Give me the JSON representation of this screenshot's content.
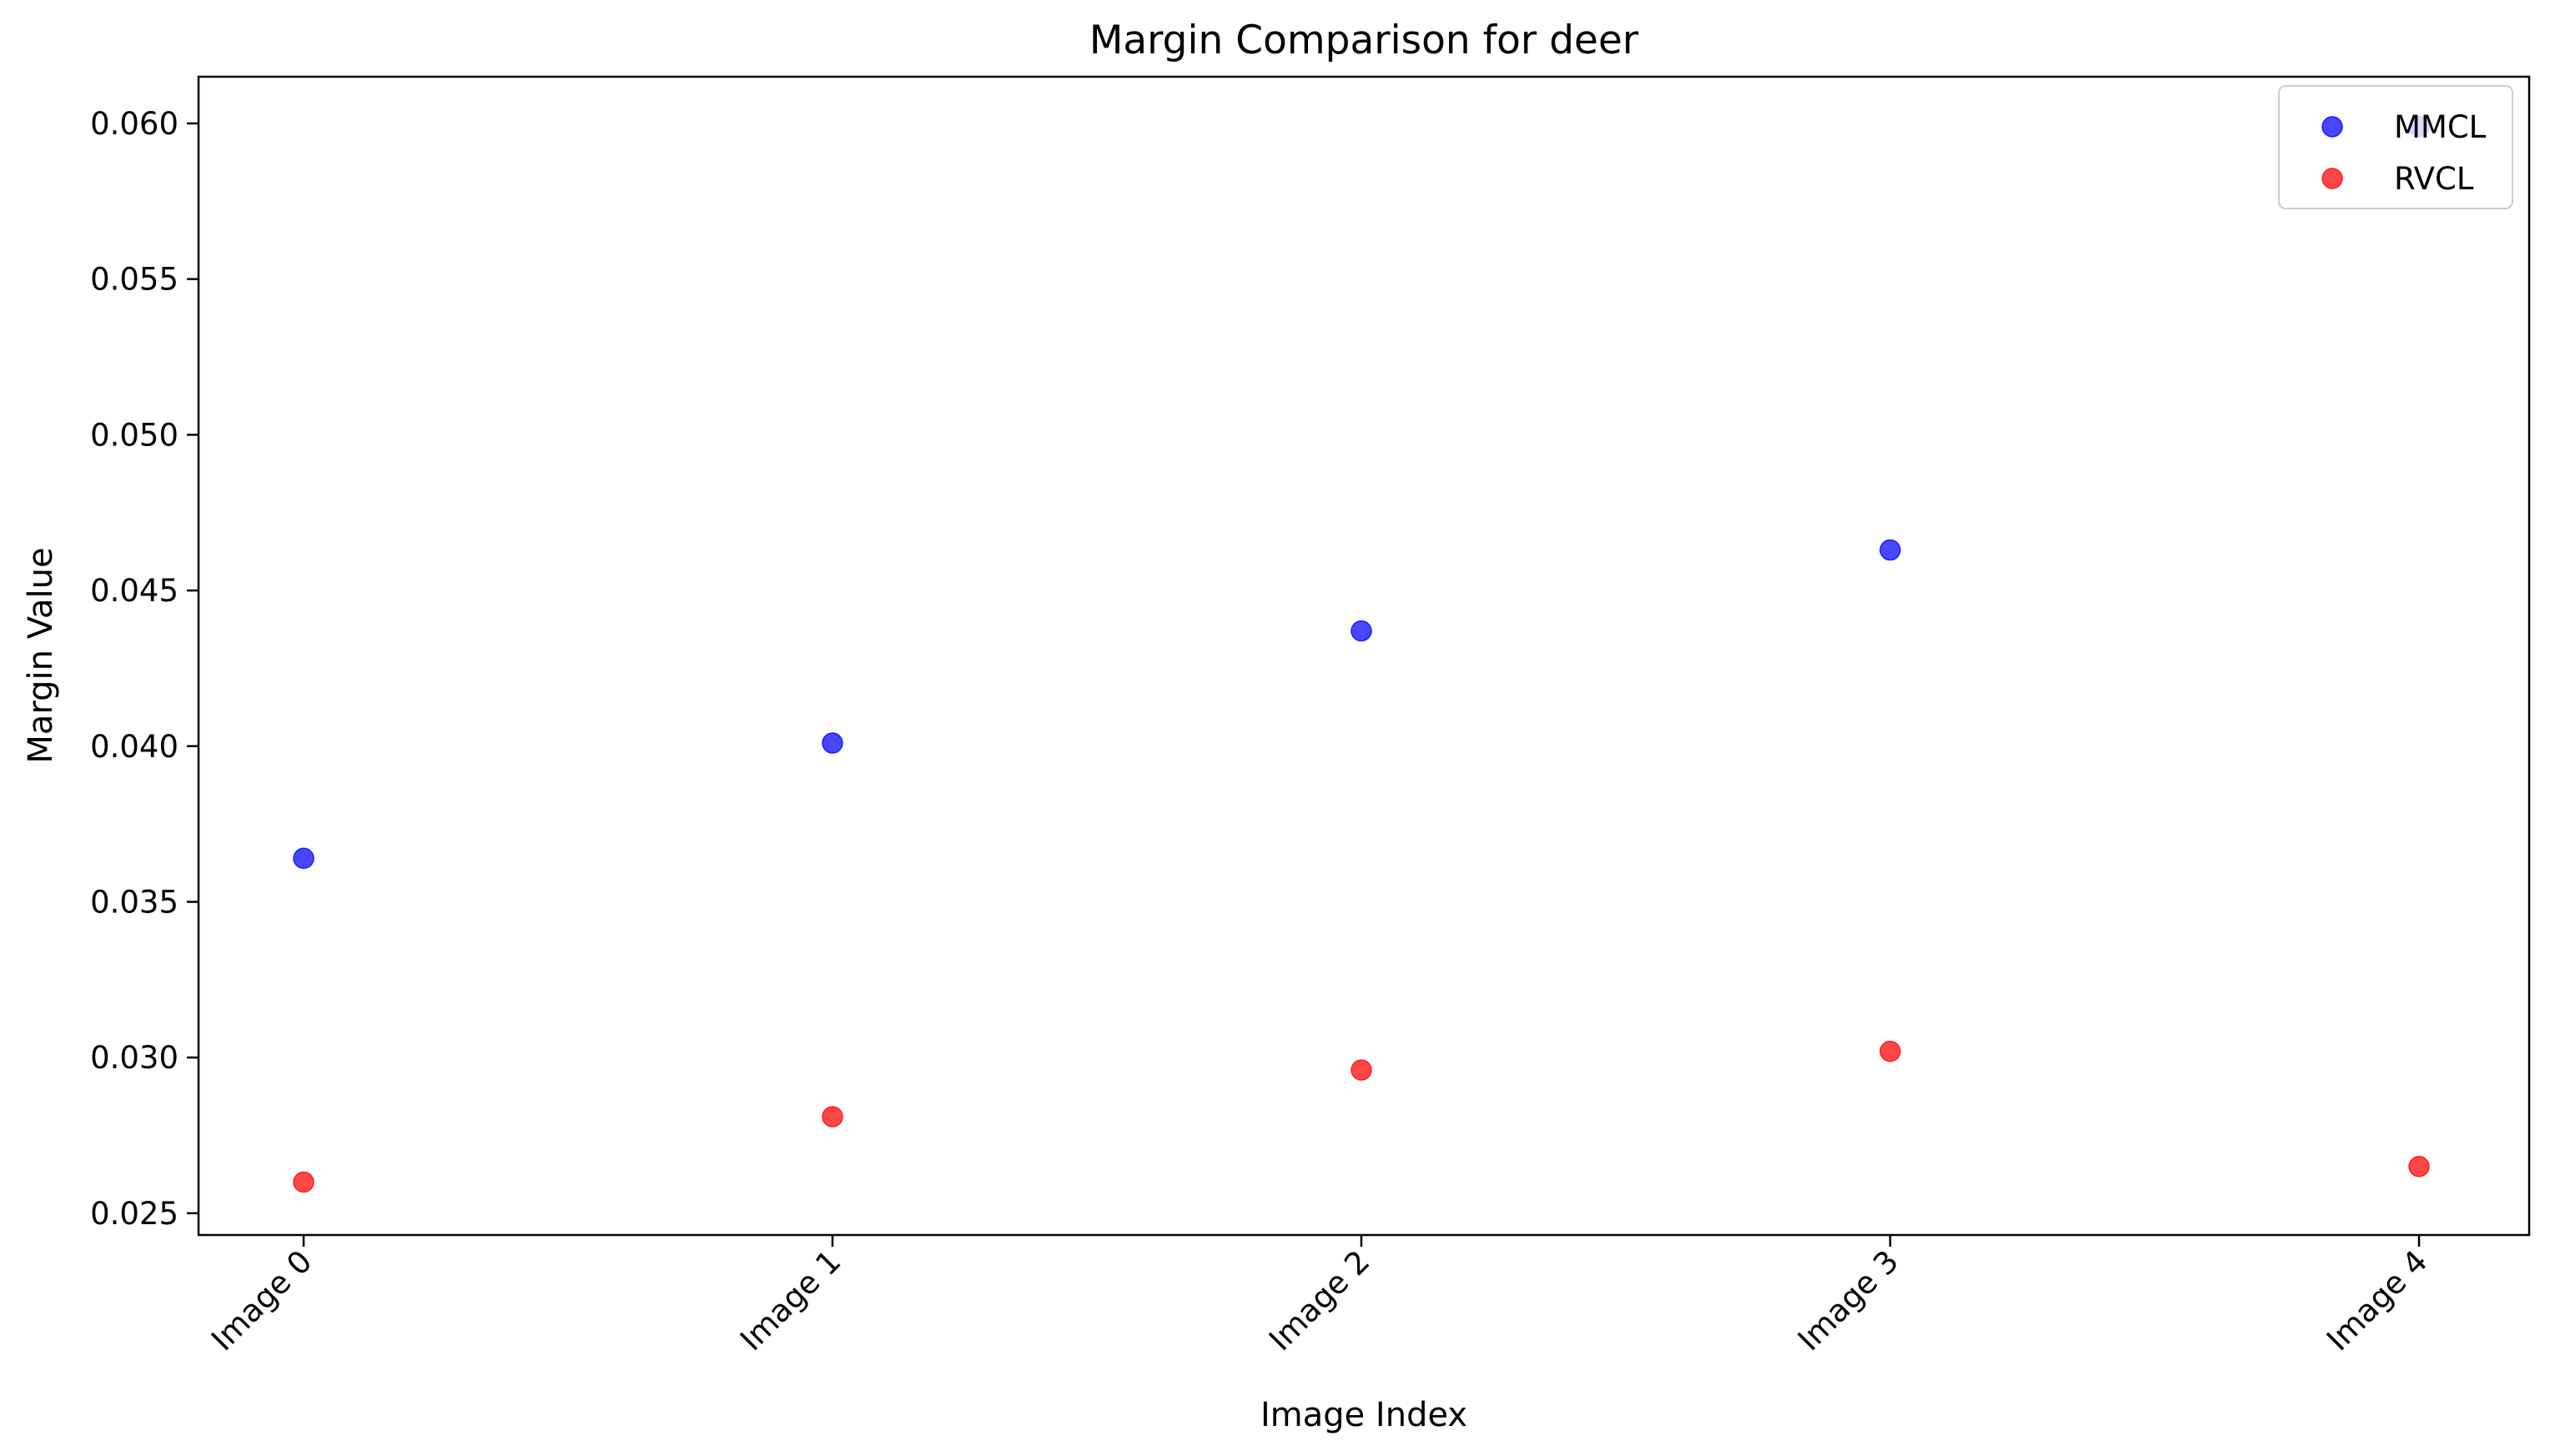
{
  "chart_data": {
    "type": "scatter",
    "title": "Margin Comparison for deer",
    "xlabel": "Image Index",
    "ylabel": "Margin Value",
    "categories": [
      "Image 0",
      "Image 1",
      "Image 2",
      "Image 3",
      "Image 4"
    ],
    "y_ticks": [
      "0.025",
      "0.030",
      "0.035",
      "0.040",
      "0.045",
      "0.050",
      "0.055",
      "0.060"
    ],
    "ylim": [
      0.0243,
      0.0615
    ],
    "grid": false,
    "legend_position": "top-right",
    "series": [
      {
        "name": "MMCL",
        "color": "#0000ff",
        "values": [
          0.0364,
          0.0401,
          0.0437,
          0.0463,
          0.0599
        ]
      },
      {
        "name": "RVCL",
        "color": "#ff0000",
        "values": [
          0.026,
          0.0281,
          0.0296,
          0.0302,
          0.0265
        ]
      }
    ]
  }
}
